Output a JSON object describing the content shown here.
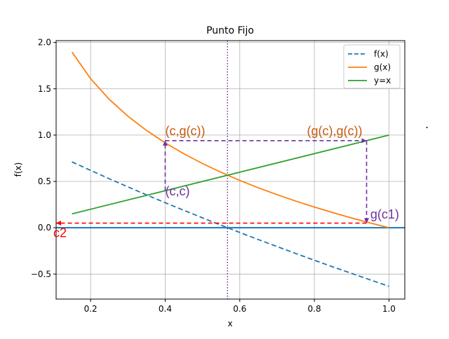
{
  "chart_data": {
    "type": "line",
    "title": "Punto Fijo",
    "xlabel": "x",
    "ylabel": "f(x)",
    "xlim": [
      0.1075,
      1.0425
    ],
    "ylim": [
      -0.77,
      2.02
    ],
    "xticks": [
      0.2,
      0.4,
      0.6,
      0.8,
      1.0
    ],
    "xtick_labels": [
      "0.2",
      "0.4",
      "0.6",
      "0.8",
      "1.0"
    ],
    "yticks": [
      -0.5,
      0.0,
      0.5,
      1.0,
      1.5,
      2.0
    ],
    "ytick_labels": [
      "−0.5",
      "0.0",
      "0.5",
      "1.0",
      "1.5",
      "2.0"
    ],
    "grid": true,
    "legend_position": "top-right",
    "series": [
      {
        "name": "f(x)",
        "style": "dashed",
        "color": "#1f77b4",
        "x": [
          0.15,
          0.2,
          0.25,
          0.3,
          0.35,
          0.4,
          0.45,
          0.5,
          0.55,
          0.6,
          0.65,
          0.7,
          0.75,
          0.8,
          0.85,
          0.9,
          0.95,
          1.0
        ],
        "y": [
          0.711,
          0.619,
          0.529,
          0.441,
          0.355,
          0.27,
          0.188,
          0.107,
          0.027,
          -0.051,
          -0.128,
          -0.203,
          -0.278,
          -0.351,
          -0.423,
          -0.493,
          -0.563,
          -0.632
        ]
      },
      {
        "name": "g(x)",
        "style": "solid",
        "color": "#ff7f0e",
        "x": [
          0.15,
          0.2,
          0.25,
          0.3,
          0.35,
          0.4,
          0.45,
          0.5,
          0.55,
          0.6,
          0.65,
          0.7,
          0.75,
          0.8,
          0.85,
          0.9,
          0.95,
          1.0
        ],
        "y": [
          1.897,
          1.609,
          1.386,
          1.204,
          1.05,
          0.916,
          0.799,
          0.693,
          0.598,
          0.511,
          0.431,
          0.357,
          0.288,
          0.223,
          0.163,
          0.105,
          0.051,
          0.0
        ]
      },
      {
        "name": "y=x",
        "style": "solid",
        "color": "#2ca02c",
        "x": [
          0.15,
          1.0
        ],
        "y": [
          0.15,
          1.0
        ]
      }
    ],
    "reference_lines": {
      "horizontal_y0": {
        "y": 0.0,
        "color": "#1f77b4"
      },
      "vertical_dotted": {
        "x": 0.567,
        "color": "#7030a0"
      }
    },
    "annotations": [
      {
        "text": "(c,g(c))",
        "x": 0.4,
        "y": 1.0,
        "color": "#c55a11"
      },
      {
        "text": "(g(c),g(c))",
        "x": 0.78,
        "y": 1.0,
        "color": "#c55a11"
      },
      {
        "text": "(c,c)",
        "x": 0.4,
        "y": 0.35,
        "color": "#7030a0"
      },
      {
        "text": "g(c1)",
        "x": 0.95,
        "y": 0.1,
        "color": "#7030a0"
      },
      {
        "text": "c2",
        "x": 0.1,
        "y": -0.1,
        "color": "#ff0000"
      }
    ],
    "arrows": [
      {
        "from": [
          0.4,
          0.4
        ],
        "to": [
          0.4,
          0.94
        ],
        "color": "#7030a0"
      },
      {
        "from": [
          0.4,
          0.94
        ],
        "to": [
          0.94,
          0.94
        ],
        "color": "#7030a0"
      },
      {
        "from": [
          0.94,
          0.94
        ],
        "to": [
          0.94,
          0.05
        ],
        "color": "#7030a0"
      },
      {
        "from": [
          0.94,
          0.05
        ],
        "to": [
          0.1075,
          0.05
        ],
        "color": "#ff0000"
      }
    ],
    "stray_mark": "."
  }
}
